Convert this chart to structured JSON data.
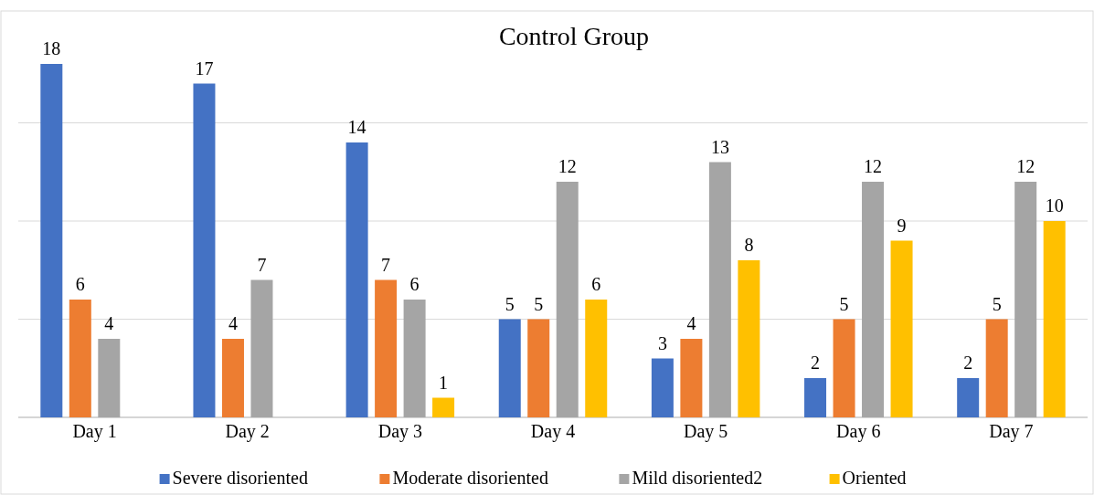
{
  "chart_data": {
    "type": "bar",
    "title": "Control Group",
    "categories": [
      "Day 1",
      "Day 2",
      "Day 3",
      "Day 4",
      "Day 5",
      "Day 6",
      "Day 7"
    ],
    "series": [
      {
        "name": "Severe disoriented",
        "color": "#4472c4",
        "values": [
          18,
          17,
          14,
          5,
          3,
          2,
          2
        ]
      },
      {
        "name": "Moderate disoriented",
        "color": "#ed7d31",
        "values": [
          6,
          4,
          7,
          5,
          4,
          5,
          5
        ]
      },
      {
        "name": "Mild disoriented2",
        "color": "#a5a5a5",
        "values": [
          4,
          7,
          6,
          12,
          13,
          12,
          12
        ]
      },
      {
        "name": "Oriented",
        "color": "#ffc000",
        "values": [
          null,
          null,
          1,
          6,
          8,
          9,
          10
        ]
      }
    ],
    "yticks": [
      {
        "value": 0,
        "label": null
      },
      {
        "value": 5,
        "label": null
      },
      {
        "value": 10,
        "label": null
      },
      {
        "value": 15,
        "label": null
      }
    ],
    "tick_labels": "x",
    "grid": "y",
    "legend": "bottom",
    "data_labels": true
  }
}
